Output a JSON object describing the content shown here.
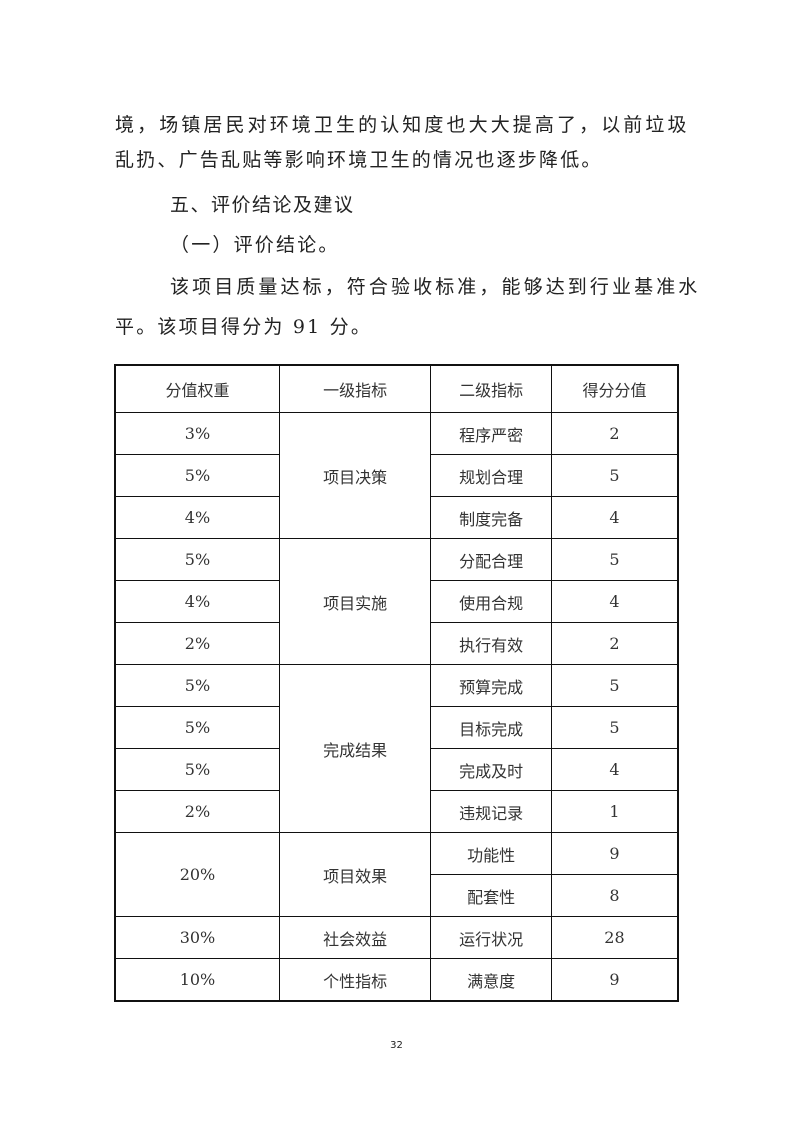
{
  "paragraphs": {
    "line1": "境，场镇居民对环境卫生的认知度也大大提高了，以前垃圾",
    "line2": "乱扔、广告乱贴等影响环境卫生的情况也逐步降低。",
    "heading": "五、评价结论及建议",
    "subheading": "（一）评价结论。",
    "conclusion1": "该项目质量达标，符合验收标准，能够达到行业基准水",
    "conclusion2": "平。该项目得分为 91 分。"
  },
  "table": {
    "headers": [
      "分值权重",
      "一级指标",
      "二级指标",
      "得分分值"
    ],
    "groups": [
      {
        "level1": "项目决策",
        "items": [
          {
            "weight": "3%",
            "level2": "程序严密",
            "score": "2"
          },
          {
            "weight": "5%",
            "level2": "规划合理",
            "score": "5"
          },
          {
            "weight": "4%",
            "level2": "制度完备",
            "score": "4"
          }
        ]
      },
      {
        "level1": "项目实施",
        "items": [
          {
            "weight": "5%",
            "level2": "分配合理",
            "score": "5"
          },
          {
            "weight": "4%",
            "level2": "使用合规",
            "score": "4"
          },
          {
            "weight": "2%",
            "level2": "执行有效",
            "score": "2"
          }
        ]
      },
      {
        "level1": "完成结果",
        "items": [
          {
            "weight": "5%",
            "level2": "预算完成",
            "score": "5"
          },
          {
            "weight": "5%",
            "level2": "目标完成",
            "score": "5"
          },
          {
            "weight": "5%",
            "level2": "完成及时",
            "score": "4"
          },
          {
            "weight": "2%",
            "level2": "违规记录",
            "score": "1"
          }
        ]
      },
      {
        "level1": "项目效果",
        "weight": "20%",
        "items": [
          {
            "level2": "功能性",
            "score": "9"
          },
          {
            "level2": "配套性",
            "score": "8"
          }
        ]
      },
      {
        "level1": "社会效益",
        "items": [
          {
            "weight": "30%",
            "level2": "运行状况",
            "score": "28"
          }
        ]
      },
      {
        "level1": "个性指标",
        "items": [
          {
            "weight": "10%",
            "level2": "满意度",
            "score": "9"
          }
        ]
      }
    ]
  },
  "page_number": "32"
}
